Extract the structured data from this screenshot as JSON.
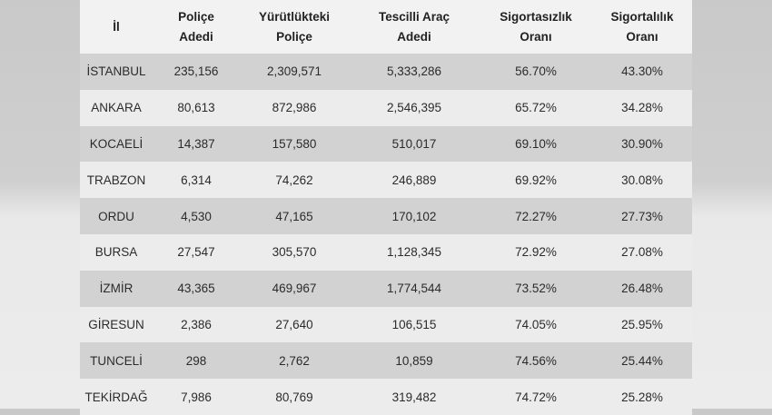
{
  "table": {
    "headers": [
      [
        "İl"
      ],
      [
        "Poliçe",
        "Adedi"
      ],
      [
        "Yürütlükteki",
        "Poliçe"
      ],
      [
        "Tescilli Araç",
        "Adedi"
      ],
      [
        "Sigortasızlık",
        "Oranı"
      ],
      [
        "Sigortalılık",
        "Oranı"
      ]
    ],
    "rows": [
      [
        "İSTANBUL",
        "235,156",
        "2,309,571",
        "5,333,286",
        "56.70%",
        "43.30%"
      ],
      [
        "ANKARA",
        "80,613",
        "872,986",
        "2,546,395",
        "65.72%",
        "34.28%"
      ],
      [
        "KOCAELİ",
        "14,387",
        "157,580",
        "510,017",
        "69.10%",
        "30.90%"
      ],
      [
        "TRABZON",
        "6,314",
        "74,262",
        "246,889",
        "69.92%",
        "30.08%"
      ],
      [
        "ORDU",
        "4,530",
        "47,165",
        "170,102",
        "72.27%",
        "27.73%"
      ],
      [
        "BURSA",
        "27,547",
        "305,570",
        "1,128,345",
        "72.92%",
        "27.08%"
      ],
      [
        "İZMİR",
        "43,365",
        "469,967",
        "1,774,544",
        "73.52%",
        "26.48%"
      ],
      [
        "GİRESUN",
        "2,386",
        "27,640",
        "106,515",
        "74.05%",
        "25.95%"
      ],
      [
        "TUNCELİ",
        "298",
        "2,762",
        "10,859",
        "74.56%",
        "25.44%"
      ],
      [
        "TEKİRDAĞ",
        "7,986",
        "80,769",
        "319,482",
        "74.72%",
        "25.28%"
      ]
    ]
  }
}
